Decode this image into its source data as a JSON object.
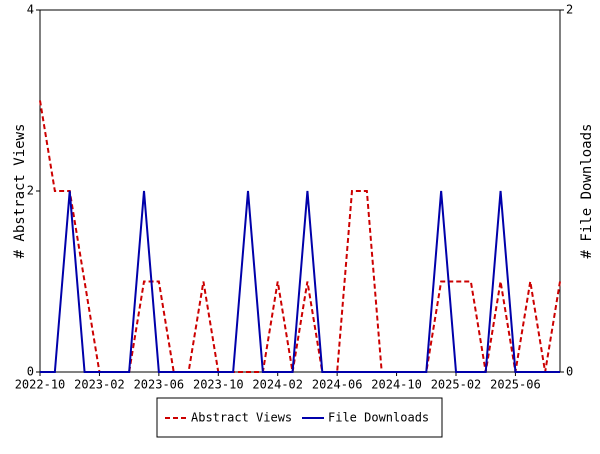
{
  "chart_data": {
    "type": "line",
    "categories": [
      "2022-10",
      null,
      null,
      null,
      "2023-02",
      null,
      null,
      null,
      "2023-06",
      null,
      null,
      null,
      "2023-10",
      null,
      null,
      null,
      "2024-02",
      null,
      null,
      null,
      "2024-06",
      null,
      null,
      null,
      "2024-10",
      null,
      null,
      null,
      "2025-02",
      null,
      null,
      null,
      "2025-06",
      null,
      null,
      null
    ],
    "series": [
      {
        "name": "Abstract Views",
        "color": "#cc0000",
        "dashed": true,
        "axis": "y",
        "values": [
          3,
          2,
          2,
          1,
          0,
          0,
          0,
          1,
          1,
          0,
          0,
          1,
          0,
          0,
          0,
          0,
          1,
          0,
          1,
          0,
          0,
          2,
          2,
          0,
          0,
          0,
          0,
          1,
          1,
          1,
          0,
          1,
          0,
          1,
          0,
          1
        ]
      },
      {
        "name": "File Downloads",
        "color": "#0000aa",
        "dashed": false,
        "axis": "y2",
        "values": [
          0,
          0,
          1,
          0,
          0,
          0,
          0,
          1,
          0,
          0,
          0,
          0,
          0,
          0,
          1,
          0,
          0,
          0,
          1,
          0,
          0,
          0,
          0,
          0,
          0,
          0,
          0,
          1,
          0,
          0,
          0,
          1,
          0,
          0,
          0,
          0
        ]
      }
    ],
    "ylabel": "# Abstract Views",
    "y2label": "# File Downloads",
    "ylim": [
      0,
      4
    ],
    "yticks": [
      0,
      2,
      4
    ],
    "y2lim": [
      0,
      2
    ],
    "y2ticks": [
      0,
      2
    ]
  }
}
